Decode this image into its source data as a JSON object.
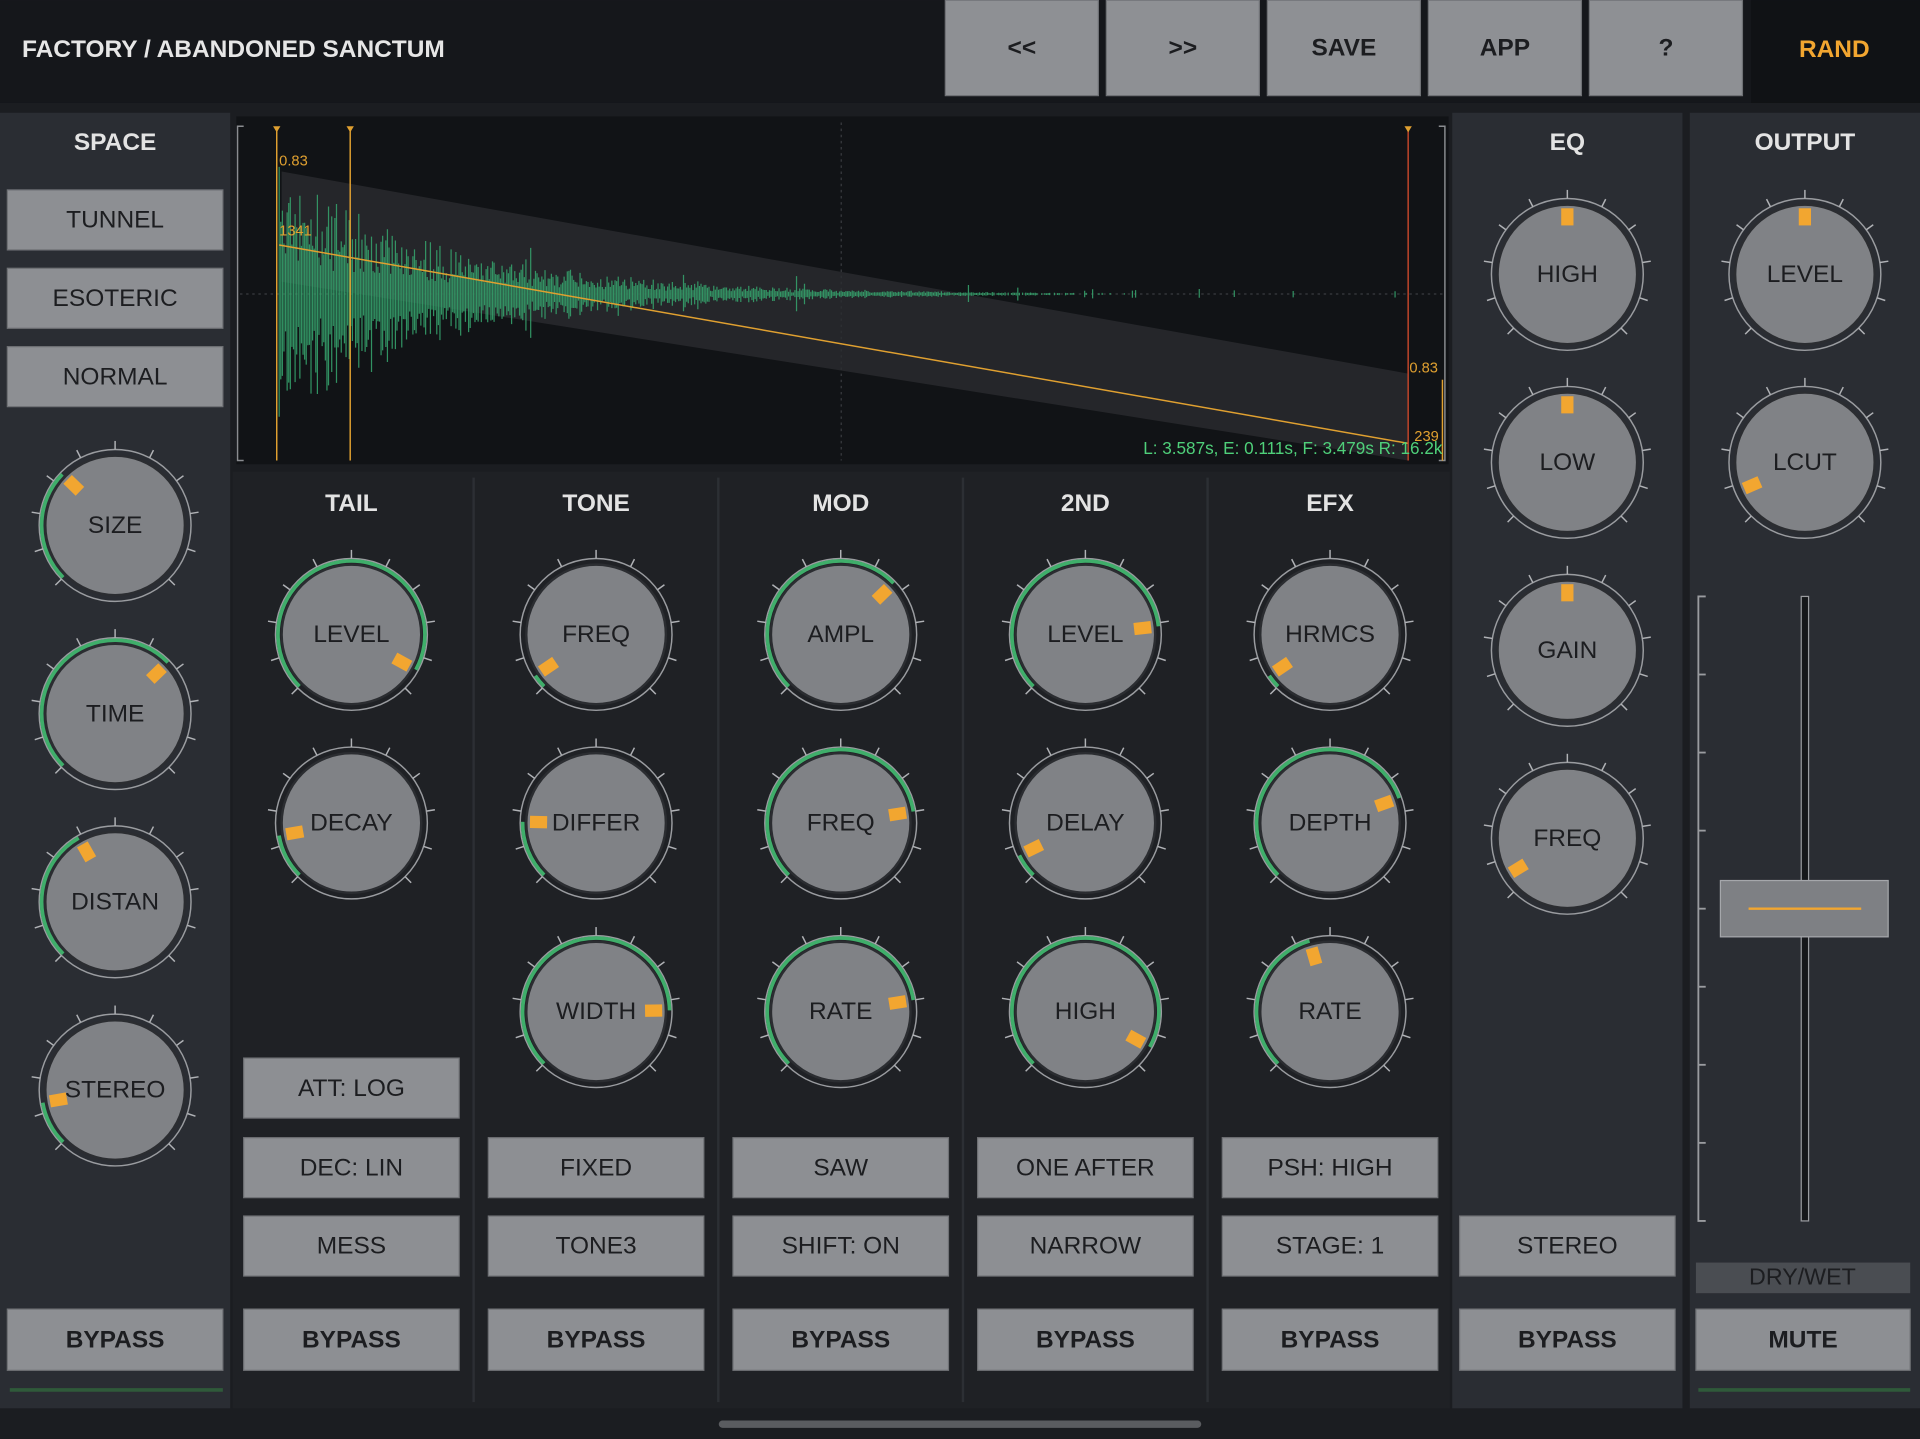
{
  "header": {
    "title": "FACTORY / ABANDONED SANCTUM",
    "buttons": [
      "<<",
      ">>",
      "SAVE",
      "APP",
      "?"
    ],
    "rand": "RAND"
  },
  "space": {
    "title": "SPACE",
    "modes": [
      "TUNNEL",
      "ESOTERIC",
      "NORMAL"
    ],
    "knobs": [
      {
        "label": "SIZE",
        "value": 0.33
      },
      {
        "label": "TIME",
        "value": 0.67
      },
      {
        "label": "DISTAN",
        "value": 0.39
      },
      {
        "label": "STEREO",
        "value": 0.13
      }
    ],
    "bypass": "BYPASS"
  },
  "display": {
    "labels": [
      "0.83",
      "1341",
      "0.83",
      "239"
    ],
    "readout": "L: 3.587s, E: 0.111s, F: 3.479s R: 16.2k"
  },
  "columns": [
    {
      "title": "TAIL",
      "knobs": [
        {
          "label": "LEVEL",
          "value": 0.94
        },
        {
          "label": "DECAY",
          "value": 0.13
        }
      ],
      "buttons": [
        "ATT: LOG",
        "DEC: LIN",
        "MESS"
      ],
      "bypass": "BYPASS"
    },
    {
      "title": "TONE",
      "knobs": [
        {
          "label": "FREQ",
          "value": 0.04
        },
        {
          "label": "DIFFER",
          "value": 0.17
        },
        {
          "label": "WIDTH",
          "value": 0.83
        }
      ],
      "buttons": [
        "FIXED",
        "TONE3"
      ],
      "bypass": "BYPASS"
    },
    {
      "title": "MOD",
      "knobs": [
        {
          "label": "AMPL",
          "value": 0.67
        },
        {
          "label": "FREQ",
          "value": 0.8
        },
        {
          "label": "RATE",
          "value": 0.8
        }
      ],
      "buttons": [
        "SAW",
        "SHIFT: ON"
      ],
      "bypass": "BYPASS"
    },
    {
      "title": "2ND",
      "knobs": [
        {
          "label": "LEVEL",
          "value": 0.81
        },
        {
          "label": "DELAY",
          "value": 0.07
        },
        {
          "label": "HIGH",
          "value": 0.94
        }
      ],
      "buttons": [
        "ONE AFTER",
        "NARROW"
      ],
      "bypass": "BYPASS"
    },
    {
      "title": "EFX",
      "knobs": [
        {
          "label": "HRMCS",
          "value": 0.04
        },
        {
          "label": "DEPTH",
          "value": 0.76
        },
        {
          "label": "RATE",
          "value": 0.44
        }
      ],
      "buttons": [
        "PSH: HIGH",
        "STAGE: 1"
      ],
      "bypass": "BYPASS"
    }
  ],
  "eq": {
    "title": "EQ",
    "knobs": [
      {
        "label": "HIGH",
        "value": 0.5
      },
      {
        "label": "LOW",
        "value": 0.5
      },
      {
        "label": "GAIN",
        "value": 0.5
      },
      {
        "label": "FREQ",
        "value": 0.05
      }
    ],
    "buttons": [
      "STEREO"
    ],
    "bypass": "BYPASS"
  },
  "output": {
    "title": "OUTPUT",
    "knobs": [
      {
        "label": "LEVEL",
        "value": 0.5
      },
      {
        "label": "LCUT",
        "value": 0.08
      }
    ],
    "fader": {
      "label": "DRY/WET",
      "value": 0.5
    },
    "mute": "MUTE"
  }
}
